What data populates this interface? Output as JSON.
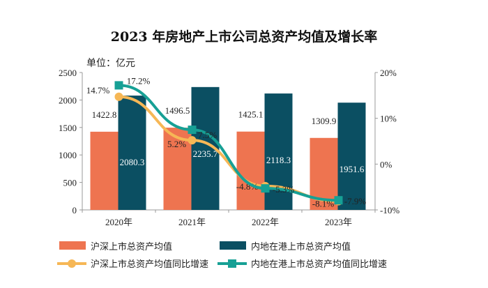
{
  "chart_data": {
    "type": "bar+line",
    "title": "2023 年房地产上市公司总资产均值及增长率",
    "unit_label": "单位：亿元",
    "categories": [
      "2020年",
      "2021年",
      "2022年",
      "2023年"
    ],
    "y_left": {
      "range": [
        0,
        2500
      ],
      "ticks": [
        "0",
        "500",
        "1000",
        "1500",
        "2000",
        "2500"
      ]
    },
    "y_right": {
      "range": [
        -10,
        20
      ],
      "ticks": [
        "-10%",
        "0%",
        "10%",
        "20%"
      ]
    },
    "grid": false,
    "legend_position": "bottom",
    "series": [
      {
        "name": "沪深上市总资产均值",
        "type": "bar",
        "axis": "left",
        "color": "#ee7450",
        "values": [
          1422.8,
          1496.5,
          1425.1,
          1309.9
        ],
        "labels": [
          "1422.8",
          "1496.5",
          "1425.1",
          "1309.9"
        ]
      },
      {
        "name": "内地在港上市总资产均值",
        "type": "bar",
        "axis": "left",
        "color": "#0b4f62",
        "values": [
          2080.3,
          2235.7,
          2118.3,
          1951.6
        ],
        "labels": [
          "2080.3",
          "2235.7",
          "2118.3",
          "1951.6"
        ]
      },
      {
        "name": "沪深上市总资产均值同比增速",
        "type": "line",
        "axis": "right",
        "color": "#f6b756",
        "marker": "circle",
        "values": [
          14.7,
          5.2,
          -4.8,
          -8.1
        ],
        "labels": [
          "14.7%",
          "5.2%",
          "-4.8%",
          "-8.1%"
        ]
      },
      {
        "name": "内地在港上市总资产均值同比增速",
        "type": "line",
        "axis": "right",
        "color": "#17a095",
        "marker": "square",
        "values": [
          17.2,
          7.5,
          -5.3,
          -7.9
        ],
        "labels": [
          "17.2%",
          "7.5%",
          "-5.3%",
          "-7.9%"
        ]
      }
    ]
  }
}
